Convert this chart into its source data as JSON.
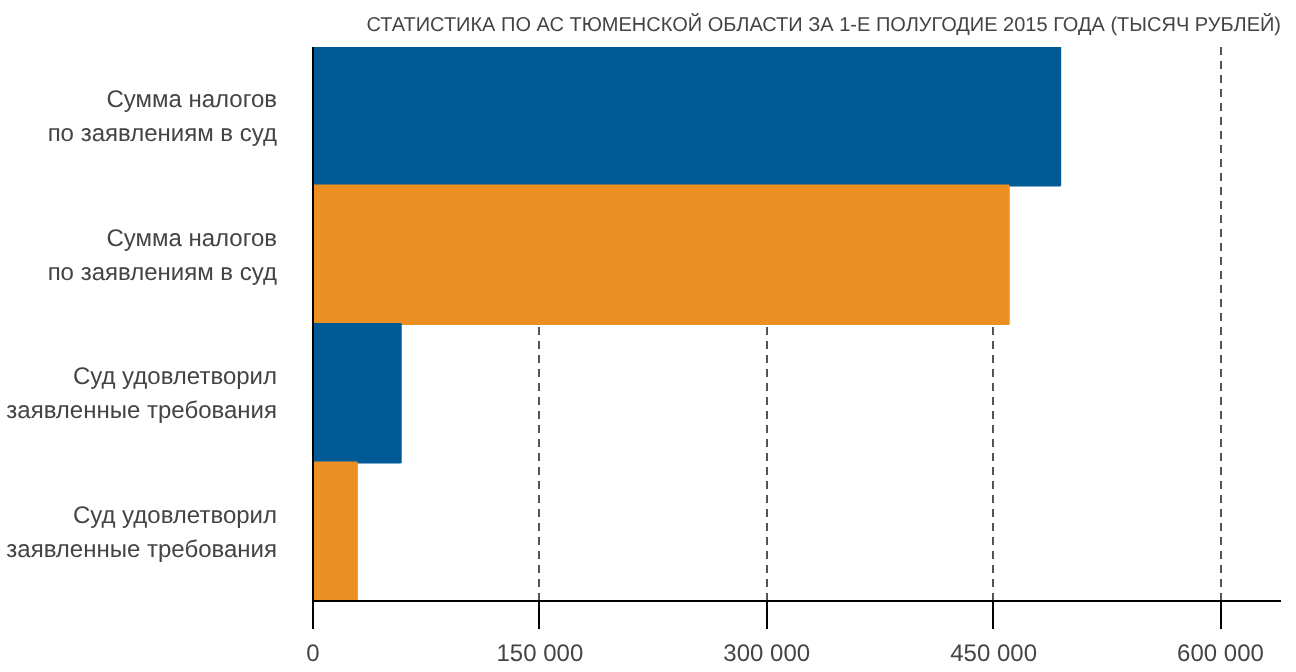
{
  "chart_data": {
    "type": "bar",
    "orientation": "horizontal",
    "title": "СТАТИСТИКА ПО АС ТЮМЕНСКОЙ ОБЛАСТИ ЗА 1-Е ПОЛУГОДИЕ 2015 ГОДА (ТЫСЯЧ РУБЛЕЙ)",
    "categories": [
      "Сумма налогов\nпо заявлениям в суд",
      "Сумма налогов\nпо заявлениям в суд",
      "Суд удовлетворил\nзаявленные требования",
      "Суд удовлетворил\nзаявленные требования"
    ],
    "values": [
      494000,
      460000,
      58000,
      29000
    ],
    "colors": [
      "#005a96",
      "#eb8f23",
      "#005a96",
      "#eb8f23"
    ],
    "xlim": [
      0,
      640000
    ],
    "xticks": [
      0,
      {
        "value": 150000,
        "label": "150 000"
      },
      {
        "value": 300000,
        "label": "300 000"
      },
      {
        "value": 450000,
        "label": "450 000"
      },
      {
        "value": 600000,
        "label": "600 000"
      }
    ],
    "grid": "x"
  }
}
